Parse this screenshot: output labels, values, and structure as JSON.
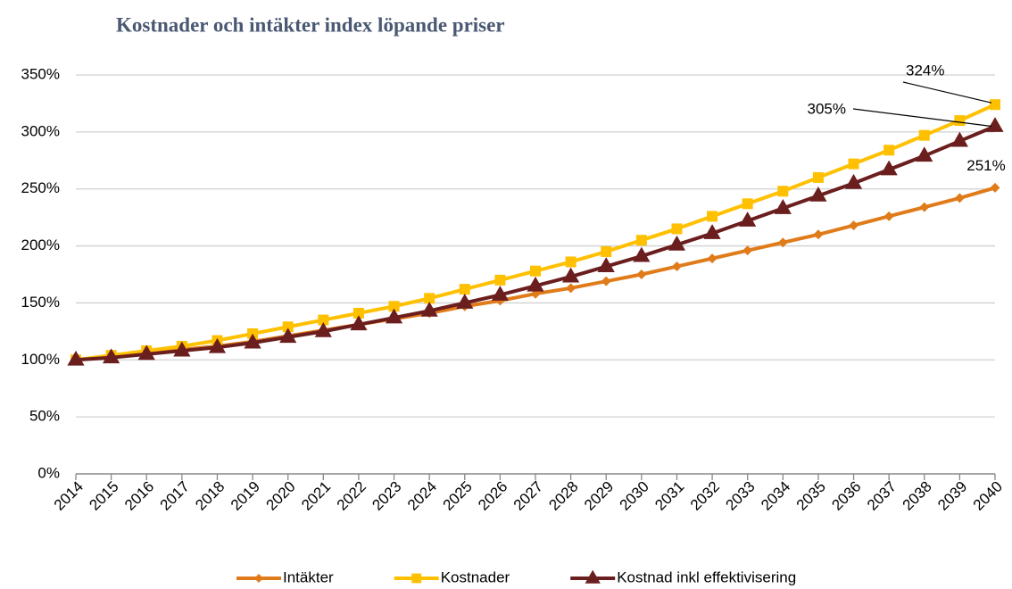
{
  "chart_data": {
    "type": "line",
    "title": "Kostnader och intäkter index löpande priser",
    "categories": [
      "2014",
      "2015",
      "2016",
      "2017",
      "2018",
      "2019",
      "2020",
      "2021",
      "2022",
      "2023",
      "2024",
      "2025",
      "2026",
      "2027",
      "2028",
      "2029",
      "2030",
      "2031",
      "2032",
      "2033",
      "2034",
      "2035",
      "2036",
      "2037",
      "2038",
      "2039",
      "2040"
    ],
    "series": [
      {
        "name": "Intäkter",
        "color": "#e07b1a",
        "marker": "diamond",
        "values": [
          100,
          103,
          106,
          109,
          112,
          116,
          121,
          126,
          131,
          136,
          141,
          147,
          152,
          158,
          163,
          169,
          175,
          182,
          189,
          196,
          203,
          210,
          218,
          226,
          234,
          242,
          251
        ],
        "value_labels": [
          null,
          null,
          null,
          null,
          null,
          null,
          null,
          null,
          null,
          null,
          null,
          null,
          null,
          null,
          null,
          null,
          null,
          null,
          null,
          null,
          null,
          null,
          null,
          null,
          null,
          null,
          "251%"
        ]
      },
      {
        "name": "Kostnader",
        "color": "#ffc000",
        "marker": "square",
        "values": [
          100,
          104,
          108,
          112,
          117,
          123,
          129,
          135,
          141,
          147,
          154,
          162,
          170,
          178,
          186,
          195,
          205,
          215,
          226,
          237,
          248,
          260,
          272,
          284,
          297,
          310,
          324
        ],
        "value_labels": [
          null,
          null,
          null,
          null,
          null,
          null,
          null,
          null,
          null,
          null,
          null,
          null,
          null,
          null,
          null,
          null,
          null,
          null,
          null,
          null,
          null,
          null,
          null,
          null,
          null,
          null,
          "324%"
        ]
      },
      {
        "name": "Kostnad inkl effektivisering",
        "color": "#6b1e1e",
        "marker": "triangle",
        "values": [
          100,
          102,
          105,
          108,
          111,
          115,
          120,
          125,
          131,
          137,
          143,
          150,
          157,
          165,
          173,
          182,
          191,
          201,
          211,
          222,
          233,
          244,
          255,
          267,
          279,
          292,
          305
        ],
        "value_labels": [
          null,
          null,
          null,
          null,
          null,
          null,
          null,
          null,
          null,
          null,
          null,
          null,
          null,
          null,
          null,
          null,
          null,
          null,
          null,
          null,
          null,
          null,
          null,
          null,
          null,
          null,
          "305%"
        ]
      }
    ],
    "ylim": [
      0,
      350
    ],
    "yticks": [
      {
        "value": 0,
        "label": "0%"
      },
      {
        "value": 50,
        "label": "50%"
      },
      {
        "value": 100,
        "label": "100%"
      },
      {
        "value": 150,
        "label": "150%"
      },
      {
        "value": 200,
        "label": "200%"
      },
      {
        "value": 250,
        "label": "250%"
      },
      {
        "value": 300,
        "label": "300%"
      },
      {
        "value": 350,
        "label": "350%"
      }
    ],
    "grid": true,
    "legend": "bottom"
  }
}
